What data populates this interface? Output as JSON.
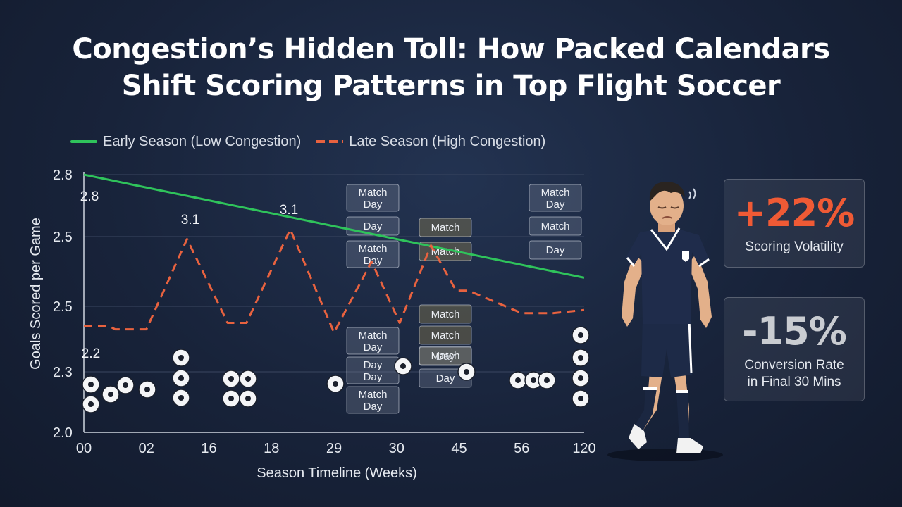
{
  "title_lines": [
    "Congestion’s Hidden Toll: How Packed Calendars",
    "Shift Scoring Patterns in Top Flight Soccer"
  ],
  "legend": {
    "early": "Early Season (Low Congestion)",
    "late": "Late Season (High Congestion)"
  },
  "colors": {
    "early": "#2fc35b",
    "late": "#e8623f",
    "positive_stat": "#ef5a35",
    "neutral_stat": "#c9ccd1"
  },
  "chart_data": {
    "type": "line",
    "xlabel": "Season Timeline (Weeks)",
    "ylabel": "Goals Scored per Game",
    "x_tick_labels": [
      "00",
      "02",
      "16",
      "18",
      "29",
      "30",
      "45",
      "56",
      "120"
    ],
    "y_tick_labels": [
      "2.8",
      "2.5",
      "2.5",
      "2.3",
      "2.0"
    ],
    "grid": true,
    "legend_position": "top-left",
    "series": [
      {
        "name": "Early Season (Low Congestion)",
        "style": "solid",
        "points": [
          [
            0,
            2.8
          ],
          [
            8,
            2.48
          ]
        ]
      },
      {
        "name": "Late Season (High Congestion)",
        "style": "dashed",
        "points": [
          [
            0,
            2.33
          ],
          [
            0.4,
            2.33
          ],
          [
            0.5,
            2.32
          ],
          [
            1.0,
            2.32
          ],
          [
            1.65,
            2.6
          ],
          [
            2.3,
            2.34
          ],
          [
            2.6,
            2.34
          ],
          [
            3.3,
            2.63
          ],
          [
            4.0,
            2.31
          ],
          [
            4.6,
            2.53
          ],
          [
            5.05,
            2.34
          ],
          [
            5.55,
            2.58
          ],
          [
            5.95,
            2.44
          ],
          [
            6.15,
            2.44
          ],
          [
            7.0,
            2.37
          ],
          [
            7.5,
            2.37
          ],
          [
            8,
            2.38
          ]
        ]
      }
    ],
    "annotations": [
      "2.8",
      "3.1",
      "3.1",
      "2.2"
    ],
    "match_day_cards": [
      [
        "Match Day",
        "Day",
        "Match Day"
      ],
      [
        "Match",
        "Match"
      ],
      [
        "Match Day",
        "Match",
        "Day"
      ],
      [
        "Match Day",
        "Day Day",
        "Match Day"
      ],
      [
        "Match",
        "Match",
        "Day"
      ],
      [
        "Match",
        "Day"
      ]
    ]
  },
  "stats": [
    {
      "value": "+22%",
      "label": "Scoring Volatility"
    },
    {
      "value": "-15%",
      "label_lines": [
        "Conversion Rate",
        "in Final 30 Mins"
      ]
    }
  ]
}
